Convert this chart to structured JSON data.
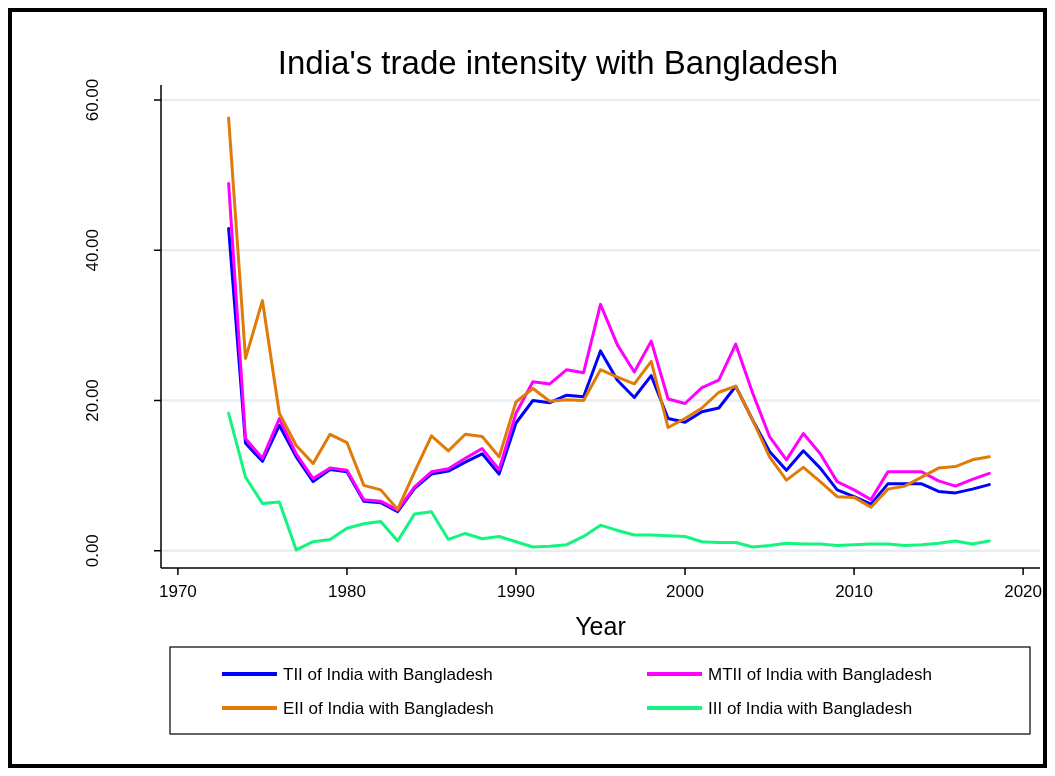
{
  "chart_data": {
    "type": "line",
    "title": "India's trade intensity with Bangladesh",
    "xlabel": "Year",
    "x": [
      1973,
      1974,
      1975,
      1976,
      1977,
      1978,
      1979,
      1980,
      1981,
      1982,
      1983,
      1984,
      1985,
      1986,
      1987,
      1988,
      1989,
      1990,
      1991,
      1992,
      1993,
      1994,
      1995,
      1996,
      1997,
      1998,
      1999,
      2000,
      2001,
      2002,
      2003,
      2004,
      2005,
      2006,
      2007,
      2008,
      2009,
      2010,
      2011,
      2012,
      2013,
      2014,
      2015,
      2016,
      2017,
      2018
    ],
    "xlim": [
      1969,
      2021
    ],
    "xticks": [
      1970,
      1980,
      1990,
      2000,
      2010,
      2020
    ],
    "ylim": [
      -2.3,
      62
    ],
    "yticks": [
      {
        "value": 0,
        "label": "0.00"
      },
      {
        "value": 20,
        "label": "20.00"
      },
      {
        "value": 40,
        "label": "40.00"
      },
      {
        "value": 60,
        "label": "60.00"
      }
    ],
    "grid": "y",
    "legend": "bottom",
    "marker": "none",
    "line_style": "solid",
    "series": [
      {
        "name": "TII of India with Bangladesh",
        "color": "#0000ff",
        "values": [
          42.9,
          14.3,
          11.9,
          16.7,
          12.5,
          9.2,
          10.8,
          10.5,
          6.6,
          6.4,
          5.2,
          8.3,
          10.2,
          10.6,
          11.8,
          12.9,
          10.2,
          17.0,
          20.0,
          19.7,
          20.7,
          20.5,
          26.6,
          22.7,
          20.4,
          23.3,
          17.6,
          17.1,
          18.5,
          19.0,
          21.9,
          17.4,
          13.2,
          10.7,
          13.3,
          11.0,
          8.1,
          7.2,
          6.2,
          8.9,
          8.9,
          8.9,
          7.9,
          7.7,
          8.2,
          8.8
        ]
      },
      {
        "name": "MTII of India with Bangladesh",
        "color": "#ff00ff",
        "values": [
          48.9,
          14.9,
          12.3,
          17.6,
          12.9,
          9.6,
          11.0,
          10.7,
          6.8,
          6.6,
          5.4,
          8.5,
          10.5,
          10.9,
          12.3,
          13.6,
          10.8,
          18.3,
          22.5,
          22.2,
          24.1,
          23.7,
          32.8,
          27.4,
          23.8,
          27.9,
          20.2,
          19.6,
          21.7,
          22.7,
          27.5,
          21.0,
          15.2,
          12.1,
          15.6,
          12.9,
          9.2,
          8.1,
          6.8,
          10.5,
          10.5,
          10.5,
          9.3,
          8.6,
          9.5,
          10.3
        ]
      },
      {
        "name": "EII of India with Bangladesh",
        "color": "#e07b0a",
        "values": [
          57.6,
          25.6,
          33.3,
          18.3,
          14.0,
          11.6,
          15.5,
          14.4,
          8.7,
          8.1,
          5.5,
          10.5,
          15.3,
          13.3,
          15.5,
          15.2,
          12.5,
          19.8,
          21.6,
          19.9,
          20.1,
          20.0,
          24.1,
          23.1,
          22.2,
          25.2,
          16.4,
          17.6,
          19.0,
          21.1,
          21.9,
          17.4,
          12.5,
          9.4,
          11.1,
          9.2,
          7.2,
          7.1,
          5.8,
          8.2,
          8.6,
          9.8,
          11.0,
          11.2,
          12.1,
          12.5
        ]
      },
      {
        "name": "III of India with Bangladesh",
        "color": "#14f57f",
        "values": [
          18.3,
          9.8,
          6.3,
          6.5,
          0.1,
          1.2,
          1.5,
          3.0,
          3.6,
          3.9,
          1.3,
          4.9,
          5.2,
          1.5,
          2.3,
          1.6,
          1.9,
          1.2,
          0.5,
          0.6,
          0.8,
          1.9,
          3.4,
          2.7,
          2.1,
          2.1,
          2.0,
          1.9,
          1.2,
          1.1,
          1.1,
          0.5,
          0.7,
          1.0,
          0.9,
          0.9,
          0.7,
          0.8,
          0.9,
          0.9,
          0.7,
          0.8,
          1.0,
          1.3,
          0.9,
          1.3
        ]
      }
    ]
  }
}
